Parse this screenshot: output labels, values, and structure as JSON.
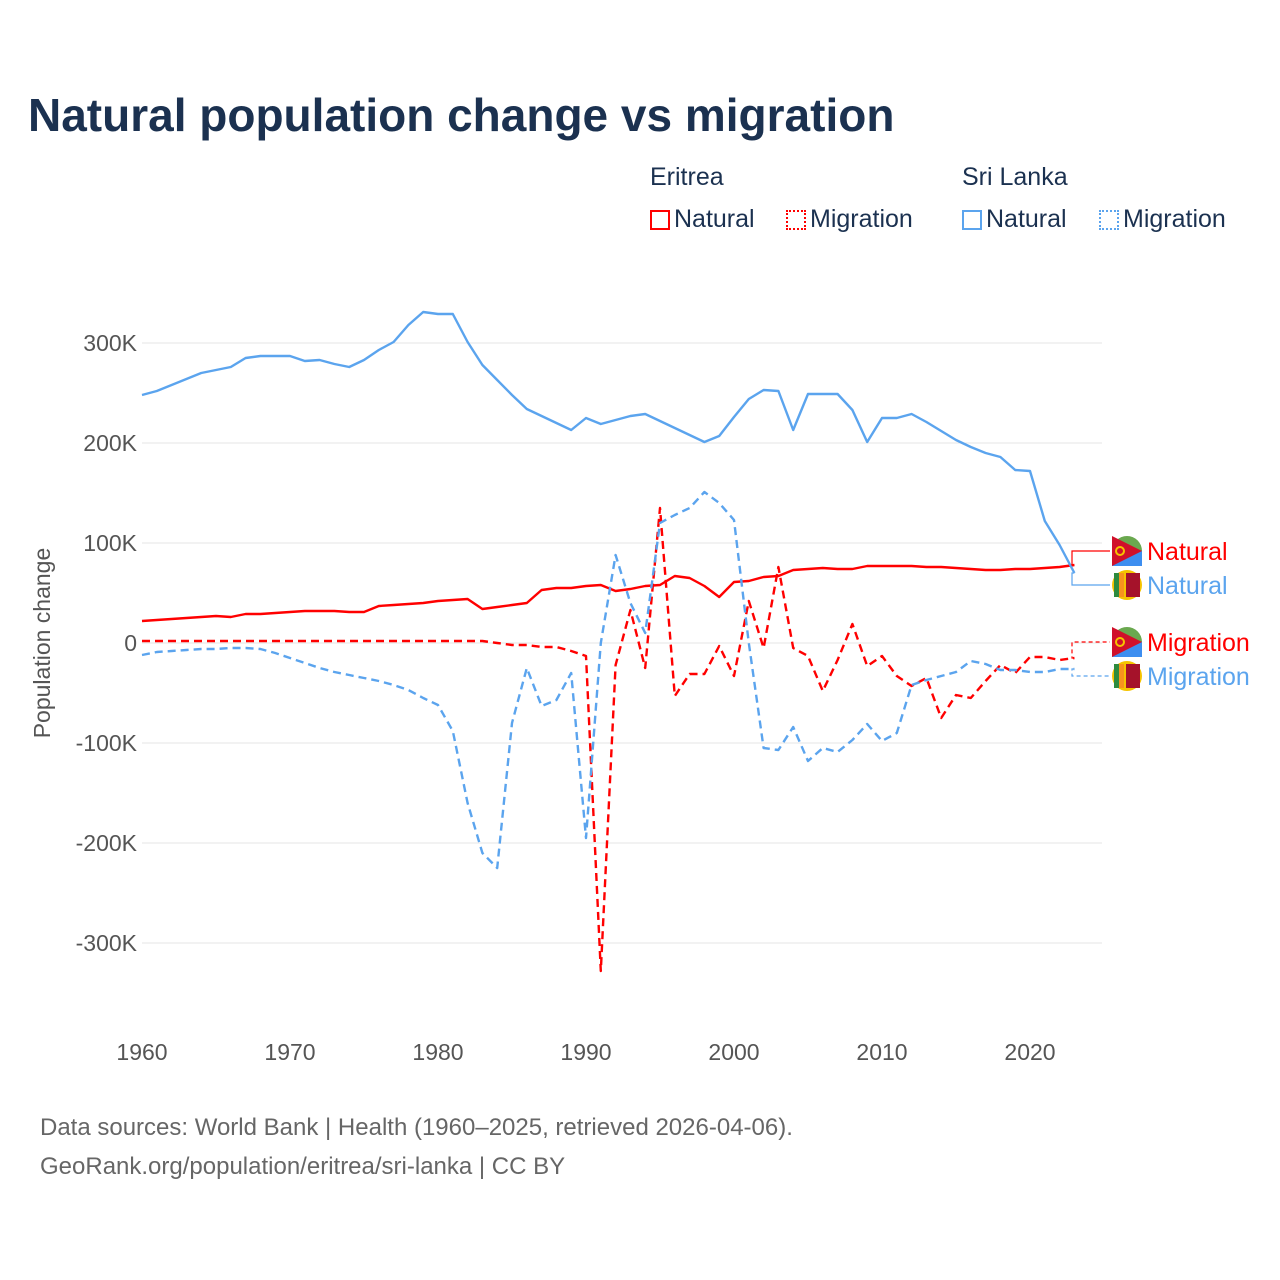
{
  "title": "Natural population change vs migration",
  "legend": {
    "groups": [
      {
        "country": "Eritrea",
        "items": [
          "Natural",
          "Migration"
        ]
      },
      {
        "country": "Sri Lanka",
        "items": [
          "Natural",
          "Migration"
        ]
      }
    ]
  },
  "colors": {
    "eritrea": "#ff0000",
    "sri_lanka": "#5ba4ee",
    "title": "#1b3150"
  },
  "source": {
    "line1": "Data sources: World Bank | Health (1960–2025, retrieved 2026-04-06).",
    "line2": "GeoRank.org/population/eritrea/sri-lanka | CC BY"
  },
  "chart_data": {
    "type": "line",
    "title": "Natural population change vs migration",
    "xlabel": "",
    "ylabel": "Population change",
    "xlim": [
      1960,
      2025
    ],
    "ylim": [
      -350000,
      350000
    ],
    "xticks": [
      1960,
      1970,
      1980,
      1990,
      2000,
      2010,
      2020
    ],
    "yticks": [
      {
        "v": 300000,
        "l": "300K"
      },
      {
        "v": 200000,
        "l": "200K"
      },
      {
        "v": 100000,
        "l": "100K"
      },
      {
        "v": 0,
        "l": "0"
      },
      {
        "v": -100000,
        "l": "-100K"
      },
      {
        "v": -200000,
        "l": "-200K"
      },
      {
        "v": -300000,
        "l": "-300K"
      }
    ],
    "x_start": 1960,
    "series": [
      {
        "name": "Eritrea Natural",
        "label": "Natural",
        "country": "Eritrea",
        "color": "#ff0000",
        "dash": false,
        "values": [
          22,
          23,
          24,
          25,
          26,
          27,
          26,
          29,
          29,
          30,
          31,
          32,
          32,
          32,
          31,
          31,
          37,
          38,
          39,
          40,
          42,
          43,
          44,
          34,
          36,
          38,
          40,
          53,
          55,
          55,
          57,
          58,
          52,
          54,
          57,
          58,
          67,
          65,
          57,
          46,
          61,
          62,
          66,
          67,
          73,
          74,
          75,
          74,
          74,
          77,
          77,
          77,
          77,
          76,
          76,
          75,
          74,
          73,
          73,
          74,
          74,
          75,
          76,
          78
        ]
      },
      {
        "name": "Sri Lanka Natural",
        "label": "Natural",
        "country": "Sri Lanka",
        "color": "#5ba4ee",
        "dash": false,
        "values": [
          248,
          252,
          258,
          264,
          270,
          273,
          276,
          285,
          287,
          287,
          287,
          282,
          283,
          279,
          276,
          283,
          293,
          301,
          318,
          331,
          329,
          329,
          301,
          278,
          263,
          248,
          234,
          227,
          220,
          213,
          225,
          219,
          223,
          227,
          229,
          222,
          215,
          208,
          201,
          207,
          226,
          244,
          253,
          252,
          213,
          249,
          249,
          249,
          233,
          201,
          225,
          225,
          229,
          221,
          212,
          203,
          196,
          190,
          186,
          173,
          172,
          122,
          98,
          70
        ]
      },
      {
        "name": "Eritrea Migration",
        "label": "Migration",
        "country": "Eritrea",
        "color": "#ff0000",
        "dash": true,
        "values": [
          2,
          2,
          2,
          2,
          2,
          2,
          2,
          2,
          2,
          2,
          2,
          2,
          2,
          2,
          2,
          2,
          2,
          2,
          2,
          2,
          2,
          2,
          2,
          2,
          0,
          -2,
          -2,
          -4,
          -4,
          -8,
          -13,
          -328,
          -22,
          33,
          -25,
          135,
          -53,
          -31,
          -31,
          -3,
          -33,
          42,
          -5,
          76,
          -5,
          -13,
          -48,
          -17,
          19,
          -23,
          -13,
          -33,
          -43,
          -35,
          -75,
          -52,
          -55,
          -38,
          -22,
          -30,
          -14,
          -14,
          -17,
          -15
        ]
      },
      {
        "name": "Sri Lanka Migration",
        "label": "Migration",
        "country": "Sri Lanka",
        "color": "#5ba4ee",
        "dash": true,
        "values": [
          -12,
          -9,
          -8,
          -7,
          -6,
          -6,
          -5,
          -5,
          -6,
          -10,
          -15,
          -20,
          -25,
          -29,
          -32,
          -35,
          -38,
          -42,
          -47,
          -55,
          -62,
          -88,
          -160,
          -210,
          -225,
          -80,
          -25,
          -63,
          -57,
          -30,
          -195,
          0,
          88,
          40,
          10,
          120,
          128,
          135,
          151,
          140,
          123,
          0,
          -105,
          -107,
          -84,
          -118,
          -105,
          -109,
          -97,
          -81,
          -98,
          -90,
          -42,
          -37,
          -33,
          -29,
          -18,
          -21,
          -27,
          -27,
          -29,
          -29,
          -26,
          -26
        ]
      }
    ],
    "value_unit": "thousands"
  }
}
